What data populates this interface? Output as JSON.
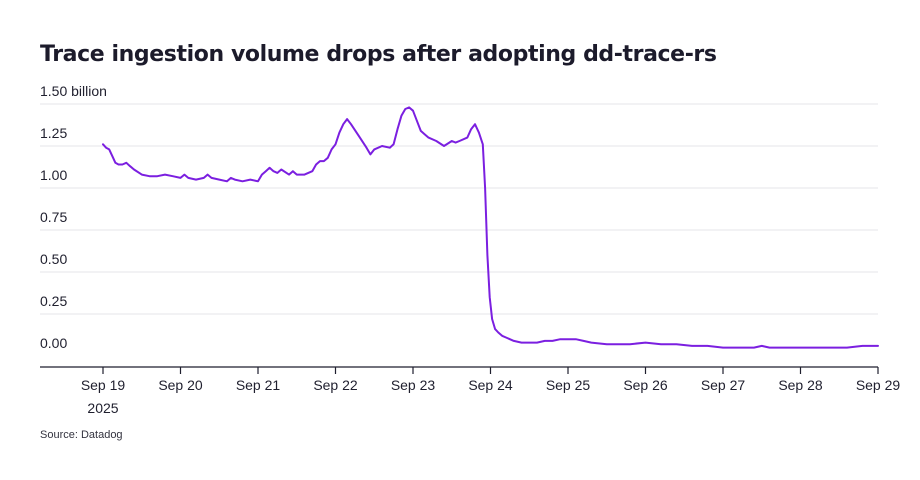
{
  "chart_data": {
    "type": "line",
    "title": "Trace ingestion volume drops after adopting dd-trace-rs",
    "source": "Source: Datadog",
    "y_unit_label": "billion",
    "ylim": [
      0,
      1.5
    ],
    "y_ticks": [
      {
        "value": 0,
        "label": "0.00"
      },
      {
        "value": 0.25,
        "label": "0.25"
      },
      {
        "value": 0.5,
        "label": "0.50"
      },
      {
        "value": 0.75,
        "label": "0.75"
      },
      {
        "value": 1.0,
        "label": "1.00"
      },
      {
        "value": 1.25,
        "label": "1.25"
      },
      {
        "value": 1.5,
        "label": "1.50 billion"
      }
    ],
    "xlim": [
      0,
      10
    ],
    "x_ticks": [
      {
        "value": 0,
        "label": "Sep 19",
        "sublabel": "2025"
      },
      {
        "value": 1,
        "label": "Sep 20"
      },
      {
        "value": 2,
        "label": "Sep 21"
      },
      {
        "value": 3,
        "label": "Sep 22"
      },
      {
        "value": 4,
        "label": "Sep 23"
      },
      {
        "value": 5,
        "label": "Sep 24"
      },
      {
        "value": 6,
        "label": "Sep 25"
      },
      {
        "value": 7,
        "label": "Sep 26"
      },
      {
        "value": 8,
        "label": "Sep 27"
      },
      {
        "value": 9,
        "label": "Sep 28"
      },
      {
        "value": 10,
        "label": "Sep 29"
      }
    ],
    "grid": true,
    "line_color": "#7b1fe0",
    "series": [
      {
        "x": [
          0,
          0.04,
          0.08,
          0.12,
          0.16,
          0.2,
          0.25,
          0.3,
          0.35,
          0.4,
          0.5,
          0.6,
          0.7,
          0.8,
          0.9,
          1.0,
          1.05,
          1.1,
          1.2,
          1.3,
          1.35,
          1.4,
          1.5,
          1.6,
          1.65,
          1.7,
          1.8,
          1.9,
          2.0,
          2.05,
          2.1,
          2.15,
          2.2,
          2.25,
          2.3,
          2.4,
          2.45,
          2.5,
          2.6,
          2.7,
          2.75,
          2.8,
          2.85,
          2.9,
          2.95,
          3.0,
          3.05,
          3.1,
          3.15,
          3.2,
          3.3,
          3.4,
          3.45,
          3.5,
          3.6,
          3.7,
          3.75,
          3.8,
          3.85,
          3.9,
          3.95,
          4.0,
          4.05,
          4.1,
          4.15,
          4.2,
          4.3,
          4.4,
          4.5,
          4.55,
          4.6,
          4.7,
          4.75,
          4.8,
          4.85,
          4.9,
          4.93,
          4.96,
          4.99,
          5.02,
          5.06,
          5.1,
          5.15,
          5.2,
          5.3,
          5.4,
          5.5,
          5.6,
          5.7,
          5.8,
          5.9,
          6.0,
          6.05,
          6.1,
          6.2,
          6.3,
          6.5,
          6.8,
          7.0,
          7.2,
          7.4,
          7.6,
          7.8,
          8.0,
          8.2,
          8.4,
          8.5,
          8.6,
          8.8,
          9.0,
          9.2,
          9.4,
          9.6,
          9.8,
          10.0
        ],
        "y": [
          1.26,
          1.24,
          1.23,
          1.19,
          1.15,
          1.14,
          1.14,
          1.15,
          1.13,
          1.11,
          1.08,
          1.07,
          1.07,
          1.08,
          1.07,
          1.06,
          1.08,
          1.06,
          1.05,
          1.06,
          1.08,
          1.06,
          1.05,
          1.04,
          1.06,
          1.05,
          1.04,
          1.05,
          1.04,
          1.08,
          1.1,
          1.12,
          1.1,
          1.09,
          1.11,
          1.08,
          1.1,
          1.08,
          1.08,
          1.1,
          1.14,
          1.16,
          1.16,
          1.18,
          1.23,
          1.26,
          1.33,
          1.38,
          1.41,
          1.38,
          1.31,
          1.24,
          1.2,
          1.23,
          1.25,
          1.24,
          1.26,
          1.35,
          1.43,
          1.47,
          1.48,
          1.46,
          1.4,
          1.34,
          1.32,
          1.3,
          1.28,
          1.25,
          1.28,
          1.27,
          1.28,
          1.3,
          1.35,
          1.38,
          1.33,
          1.26,
          1.0,
          0.6,
          0.35,
          0.22,
          0.16,
          0.14,
          0.12,
          0.11,
          0.09,
          0.08,
          0.08,
          0.08,
          0.09,
          0.09,
          0.1,
          0.1,
          0.1,
          0.1,
          0.09,
          0.08,
          0.07,
          0.07,
          0.08,
          0.07,
          0.07,
          0.06,
          0.06,
          0.05,
          0.05,
          0.05,
          0.06,
          0.05,
          0.05,
          0.05,
          0.05,
          0.05,
          0.05,
          0.06,
          0.06
        ]
      }
    ]
  }
}
